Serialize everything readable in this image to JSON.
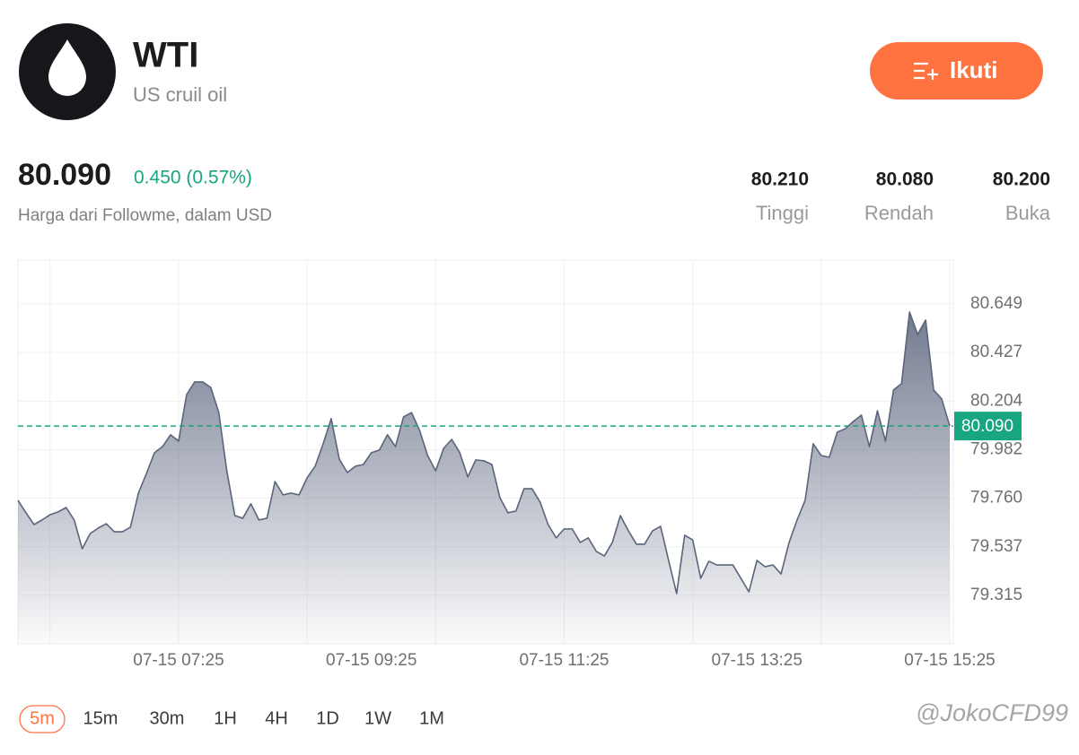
{
  "header": {
    "symbol": "WTI",
    "name": "US cruil oil",
    "button": "Ikuti",
    "price": "80.090",
    "change": "0.450 (0.57%)",
    "note": "Harga dari Followme, dalam USD"
  },
  "stats": [
    {
      "value": "80.210",
      "label": "Tinggi"
    },
    {
      "value": "80.080",
      "label": "Rendah"
    },
    {
      "value": "80.200",
      "label": "Buka"
    }
  ],
  "chart_data": {
    "type": "area",
    "color": "#5b647a",
    "categories": [
      null,
      null,
      null,
      null,
      null,
      null,
      null,
      null,
      null,
      null,
      null,
      null,
      null,
      null,
      null,
      null,
      null,
      null,
      null,
      null,
      "07-15 07:25",
      null,
      null,
      null,
      null,
      null,
      null,
      null,
      null,
      null,
      null,
      null,
      null,
      null,
      null,
      null,
      null,
      null,
      null,
      null,
      null,
      null,
      null,
      null,
      "07-15 09:25",
      null,
      null,
      null,
      null,
      null,
      null,
      null,
      null,
      null,
      null,
      null,
      null,
      null,
      null,
      null,
      null,
      null,
      null,
      null,
      null,
      null,
      null,
      null,
      "07-15 11:25",
      null,
      null,
      null,
      null,
      null,
      null,
      null,
      null,
      null,
      null,
      null,
      null,
      null,
      null,
      null,
      null,
      null,
      null,
      null,
      null,
      null,
      null,
      null,
      "07-15 13:25",
      null,
      null,
      null,
      null,
      null,
      null,
      null,
      null,
      null,
      null,
      null,
      null,
      null,
      null,
      null,
      null,
      null,
      null,
      null,
      null,
      null,
      null,
      null,
      "07-15 15:25"
    ],
    "values": [
      79.75,
      79.693,
      79.639,
      79.66,
      79.684,
      79.697,
      79.717,
      79.66,
      79.528,
      79.598,
      79.623,
      79.643,
      79.606,
      79.606,
      79.627,
      79.783,
      79.873,
      79.968,
      79.996,
      80.05,
      80.021,
      80.234,
      80.292,
      80.292,
      80.267,
      80.152,
      79.885,
      79.68,
      79.668,
      79.734,
      79.66,
      79.668,
      79.836,
      79.775,
      79.783,
      79.775,
      79.853,
      79.906,
      80.009,
      80.124,
      79.939,
      79.877,
      79.906,
      79.914,
      79.968,
      79.98,
      80.05,
      79.996,
      80.132,
      80.152,
      80.07,
      79.955,
      79.885,
      79.988,
      80.029,
      79.968,
      79.857,
      79.935,
      79.931,
      79.914,
      79.762,
      79.693,
      79.701,
      79.803,
      79.803,
      79.742,
      79.639,
      79.578,
      79.619,
      79.619,
      79.557,
      79.578,
      79.516,
      79.495,
      79.557,
      79.68,
      79.61,
      79.549,
      79.549,
      79.61,
      79.631,
      79.475,
      79.323,
      79.59,
      79.569,
      79.393,
      79.471,
      79.454,
      79.454,
      79.454,
      79.393,
      79.331,
      79.475,
      79.446,
      79.454,
      79.413,
      79.557,
      79.66,
      79.75,
      80.009,
      79.955,
      79.947,
      80.062,
      80.078,
      80.111,
      80.14,
      79.996,
      80.16,
      80.021,
      80.255,
      80.284,
      80.612,
      80.509,
      80.575,
      80.255,
      80.214,
      80.09
    ],
    "ylim": [
      79.093,
      80.85
    ],
    "yticks": [
      80.649,
      80.427,
      80.204,
      79.982,
      {
        "value": 79.76,
        "label": "79.760"
      },
      79.537,
      79.315
    ],
    "grid": true,
    "price_line": {
      "value": 80.09,
      "label": "80.090",
      "color": "#17a680"
    }
  },
  "timeframes": [
    "5m",
    "15m",
    "30m",
    "1H",
    "4H",
    "1D",
    "1W",
    "1M"
  ],
  "selected_timeframe": 0,
  "watermark": "@JokoCFD99"
}
